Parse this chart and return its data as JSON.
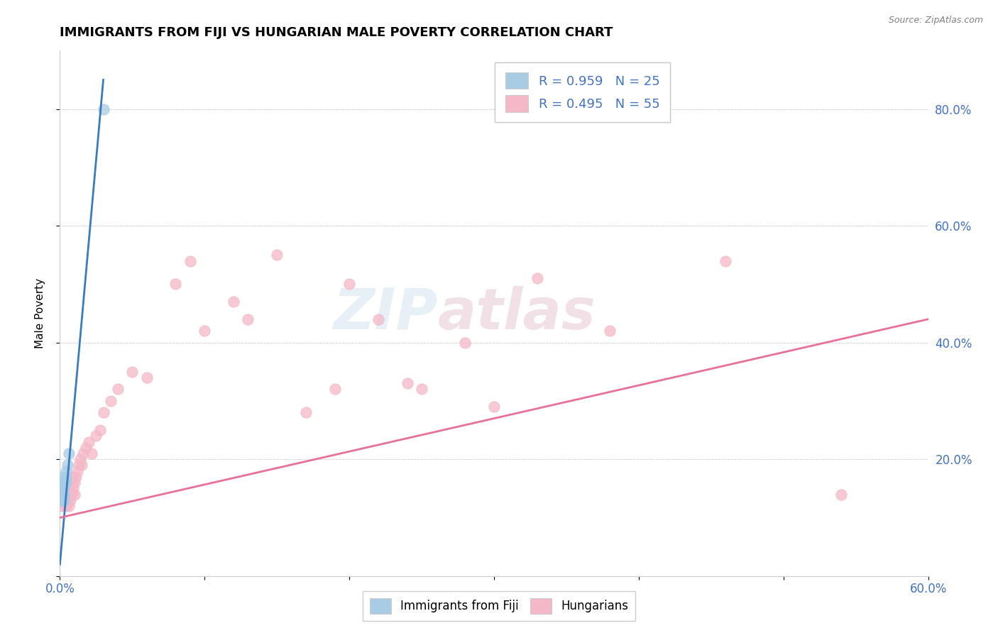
{
  "title": "IMMIGRANTS FROM FIJI VS HUNGARIAN MALE POVERTY CORRELATION CHART",
  "source": "Source: ZipAtlas.com",
  "ylabel": "Male Poverty",
  "watermark_text": "ZIP",
  "watermark_text2": "atlas",
  "legend1_label": "R = 0.959   N = 25",
  "legend2_label": "R = 0.495   N = 55",
  "legend1_series": "Immigrants from Fiji",
  "legend2_series": "Hungarians",
  "xlim": [
    0.0,
    0.6
  ],
  "ylim": [
    0.0,
    0.9
  ],
  "blue_color": "#a8cce4",
  "pink_color": "#f4b8c8",
  "blue_line_color": "#3a7bbf",
  "pink_line_color": "#e8709a",
  "fiji_x": [
    0.001,
    0.001,
    0.001,
    0.002,
    0.002,
    0.002,
    0.002,
    0.002,
    0.003,
    0.003,
    0.003,
    0.003,
    0.003,
    0.003,
    0.003,
    0.003,
    0.003,
    0.003,
    0.003,
    0.004,
    0.004,
    0.004,
    0.005,
    0.006,
    0.03
  ],
  "fiji_y": [
    0.14,
    0.13,
    0.15,
    0.14,
    0.15,
    0.16,
    0.13,
    0.14,
    0.15,
    0.16,
    0.14,
    0.15,
    0.16,
    0.17,
    0.16,
    0.15,
    0.13,
    0.14,
    0.16,
    0.17,
    0.18,
    0.16,
    0.19,
    0.21,
    0.8
  ],
  "hung_x": [
    0.001,
    0.001,
    0.002,
    0.002,
    0.003,
    0.003,
    0.004,
    0.004,
    0.004,
    0.005,
    0.005,
    0.006,
    0.006,
    0.007,
    0.007,
    0.008,
    0.008,
    0.009,
    0.009,
    0.01,
    0.01,
    0.011,
    0.012,
    0.013,
    0.014,
    0.015,
    0.016,
    0.018,
    0.02,
    0.022,
    0.025,
    0.028,
    0.03,
    0.035,
    0.04,
    0.05,
    0.06,
    0.08,
    0.09,
    0.1,
    0.12,
    0.13,
    0.15,
    0.17,
    0.19,
    0.2,
    0.22,
    0.24,
    0.25,
    0.28,
    0.3,
    0.33,
    0.38,
    0.46,
    0.54
  ],
  "hung_y": [
    0.13,
    0.14,
    0.12,
    0.14,
    0.13,
    0.15,
    0.12,
    0.14,
    0.15,
    0.13,
    0.14,
    0.12,
    0.15,
    0.13,
    0.16,
    0.14,
    0.16,
    0.15,
    0.17,
    0.14,
    0.16,
    0.17,
    0.18,
    0.19,
    0.2,
    0.19,
    0.21,
    0.22,
    0.23,
    0.21,
    0.24,
    0.25,
    0.28,
    0.3,
    0.32,
    0.35,
    0.34,
    0.5,
    0.54,
    0.42,
    0.47,
    0.44,
    0.55,
    0.28,
    0.32,
    0.5,
    0.44,
    0.33,
    0.32,
    0.4,
    0.29,
    0.51,
    0.42,
    0.54,
    0.14
  ],
  "fiji_line_x": [
    0.0,
    0.03
  ],
  "fiji_line_y": [
    0.02,
    0.85
  ],
  "hung_line_x": [
    0.0,
    0.6
  ],
  "hung_line_y": [
    0.1,
    0.44
  ],
  "bg_color": "#ffffff",
  "grid_color": "#cccccc",
  "title_color": "#000000",
  "tick_color": "#4472c4",
  "source_color": "#808080"
}
